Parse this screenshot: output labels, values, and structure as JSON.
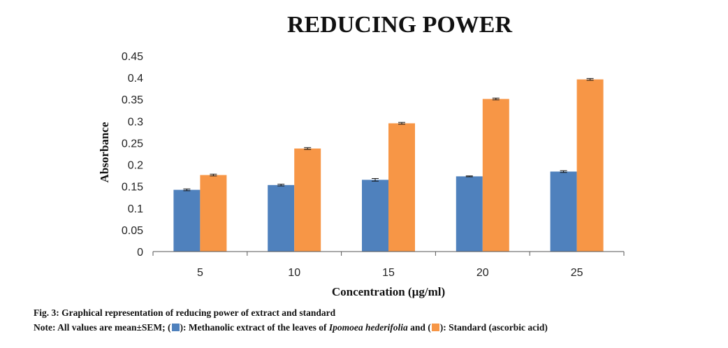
{
  "chart_data": {
    "type": "bar",
    "title": "REDUCING POWER",
    "xlabel": "Concentration (µg/ml)",
    "ylabel": "Absorbance",
    "ylim": [
      0,
      0.45
    ],
    "yticks": [
      "0",
      "0.05",
      "0.1",
      "0.15",
      "0.2",
      "0.25",
      "0.3",
      "0.35",
      "0.4",
      "0.45"
    ],
    "categories": [
      "5",
      "10",
      "15",
      "20",
      "25"
    ],
    "series": [
      {
        "name": "Methanolic extract of the leaves of Ipomoea hederifolia",
        "color": "#4F81BD",
        "values": [
          0.142,
          0.153,
          0.165,
          0.173,
          0.184
        ],
        "errors": [
          0.002,
          0.002,
          0.003,
          0.001,
          0.002
        ]
      },
      {
        "name": "Standard (ascorbic acid)",
        "color": "#F79646",
        "values": [
          0.176,
          0.237,
          0.295,
          0.351,
          0.396
        ],
        "errors": [
          0.002,
          0.002,
          0.002,
          0.002,
          0.002
        ]
      }
    ],
    "grid": false,
    "legend": "none"
  },
  "caption": {
    "fig_line": "Fig. 3: Graphical representation of reducing power of extract and standard",
    "note_prefix": "Note: All values are mean±SEM; (",
    "note_mid1": "): Methanolic extract of the leaves of ",
    "note_species": "Ipomoea hederifolia",
    "note_mid2": " and (",
    "note_end": "): Standard (ascorbic acid)",
    "color_extract": "#4F81BD",
    "color_standard": "#F79646"
  }
}
